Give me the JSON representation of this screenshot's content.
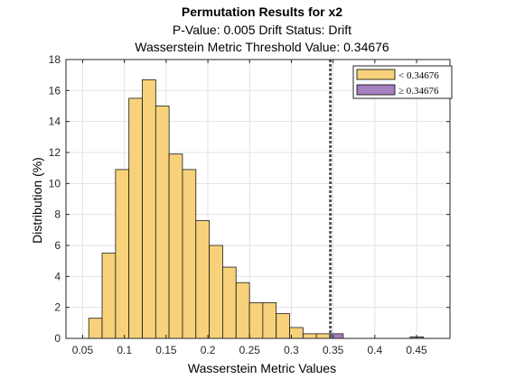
{
  "chart_data": {
    "type": "bar",
    "title": "Permutation Results for x2",
    "subtitle_line1": "P-Value: 0.005 Drift Status: Drift",
    "subtitle_line2": "Wasserstein Metric Threshold Value: 0.34676",
    "xlabel": "Wasserstein Metric Values",
    "ylabel": "Distribution (%)",
    "xlim": [
      0.03,
      0.49
    ],
    "ylim": [
      0,
      18
    ],
    "xticks": [
      "0.05",
      "0.1",
      "0.15",
      "0.2",
      "0.25",
      "0.3",
      "0.35",
      "0.4",
      "0.45"
    ],
    "xtick_values": [
      0.05,
      0.1,
      0.15,
      0.2,
      0.25,
      0.3,
      0.35,
      0.4,
      0.45
    ],
    "yticks": [
      "0",
      "2",
      "4",
      "6",
      "8",
      "10",
      "12",
      "14",
      "16",
      "18"
    ],
    "ytick_values": [
      0,
      2,
      4,
      6,
      8,
      10,
      12,
      14,
      16,
      18
    ],
    "grid": true,
    "legend_position": "top-right",
    "threshold": 0.34676,
    "bin_width": 0.01604,
    "series": [
      {
        "name": "< 0.34676",
        "color": "#f7d27a",
        "bins": [
          {
            "start": 0.0573,
            "value": 1.3
          },
          {
            "start": 0.0733,
            "value": 5.5
          },
          {
            "start": 0.0894,
            "value": 10.9
          },
          {
            "start": 0.1054,
            "value": 15.5
          },
          {
            "start": 0.1215,
            "value": 16.7
          },
          {
            "start": 0.1375,
            "value": 15.0
          },
          {
            "start": 0.1535,
            "value": 11.9
          },
          {
            "start": 0.1696,
            "value": 10.9
          },
          {
            "start": 0.1856,
            "value": 7.6
          },
          {
            "start": 0.2017,
            "value": 6.0
          },
          {
            "start": 0.2177,
            "value": 4.6
          },
          {
            "start": 0.2338,
            "value": 3.6
          },
          {
            "start": 0.2498,
            "value": 2.3
          },
          {
            "start": 0.2658,
            "value": 2.3
          },
          {
            "start": 0.2819,
            "value": 1.6
          },
          {
            "start": 0.2979,
            "value": 0.7
          },
          {
            "start": 0.314,
            "value": 0.3
          },
          {
            "start": 0.33,
            "value": 0.3
          }
        ]
      },
      {
        "name": "≥ 0.34676",
        "color": "#a67fc0",
        "bins": [
          {
            "start": 0.3461,
            "value": 0.3
          },
          {
            "start": 0.4423,
            "value": 0.1
          }
        ]
      }
    ]
  }
}
